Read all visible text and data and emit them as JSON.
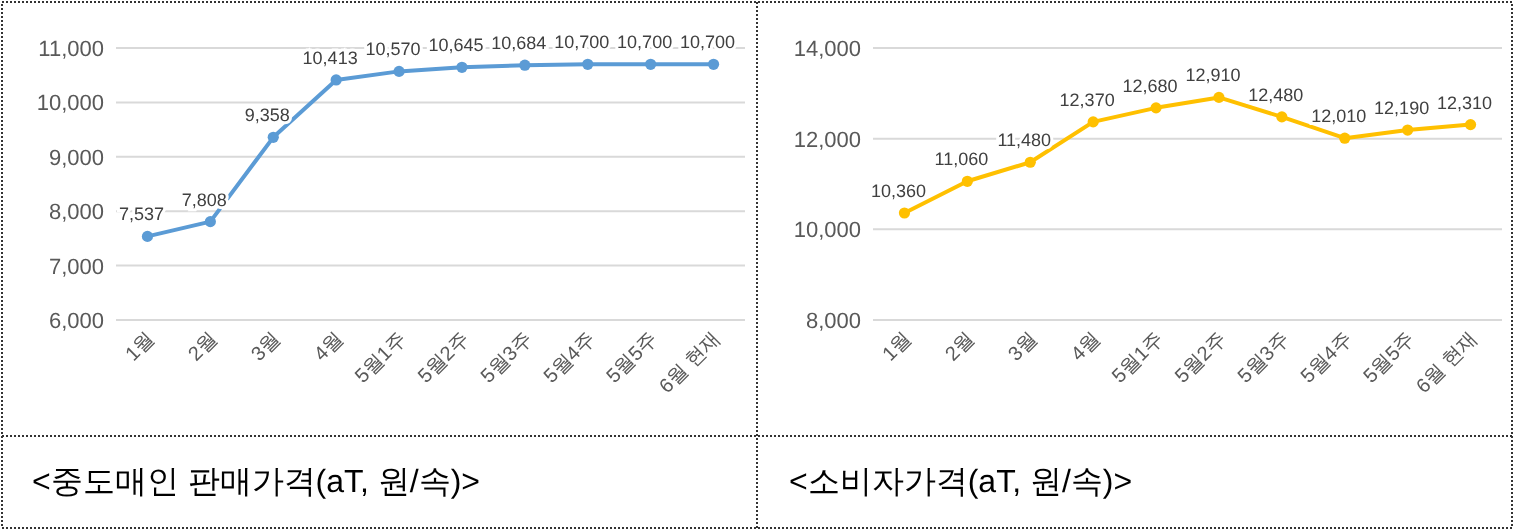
{
  "chart_data": [
    {
      "type": "line",
      "categories": [
        "1월",
        "2월",
        "3월",
        "4월",
        "5월1주",
        "5월2주",
        "5월3주",
        "5월4주",
        "5월5주",
        "6월 현재"
      ],
      "series": [
        {
          "color": "#5b9bd5",
          "values": [
            7537,
            7808,
            9358,
            10413,
            10570,
            10645,
            10684,
            10700,
            10700,
            10700
          ],
          "value_labels": [
            "7,537",
            "7,808",
            "9,358",
            "10,413",
            "10,570",
            "10,645",
            "10,684",
            "10,700",
            "10,700",
            "10,700"
          ]
        }
      ],
      "ylim": [
        6000,
        11000
      ],
      "yticks": [
        {
          "value": 6000,
          "label": "6,000"
        },
        {
          "value": 7000,
          "label": "7,000"
        },
        {
          "value": 8000,
          "label": "8,000"
        },
        {
          "value": 9000,
          "label": "9,000"
        },
        {
          "value": 10000,
          "label": "10,000"
        },
        {
          "value": 11000,
          "label": "11,000"
        }
      ],
      "grid": "y",
      "marker": "circle",
      "line_style": "solid",
      "annotations": [
        "<중도매인  판매가격(aT, 원/속)>"
      ]
    },
    {
      "type": "line",
      "categories": [
        "1월",
        "2월",
        "3월",
        "4월",
        "5월1주",
        "5월2주",
        "5월3주",
        "5월4주",
        "5월5주",
        "6월 현재"
      ],
      "series": [
        {
          "color": "#ffc000",
          "values": [
            10360,
            11060,
            11480,
            12370,
            12680,
            12910,
            12480,
            12010,
            12190,
            12310
          ],
          "value_labels": [
            "10,360",
            "11,060",
            "11,480",
            "12,370",
            "12,680",
            "12,910",
            "12,480",
            "12,010",
            "12,190",
            "12,310"
          ]
        }
      ],
      "ylim": [
        8000,
        14000
      ],
      "yticks": [
        {
          "value": 8000,
          "label": "8,000"
        },
        {
          "value": 10000,
          "label": "10,000"
        },
        {
          "value": 12000,
          "label": "12,000"
        },
        {
          "value": 14000,
          "label": "14,000"
        }
      ],
      "grid": "y",
      "marker": "circle",
      "line_style": "solid",
      "annotations": [
        "<소비자가격(aT, 원/속)>"
      ]
    }
  ]
}
